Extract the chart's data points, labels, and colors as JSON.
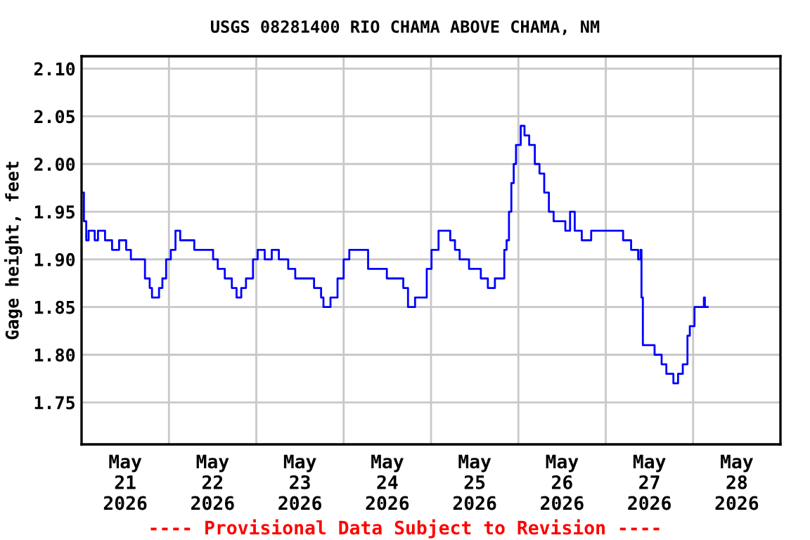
{
  "chart_data": {
    "type": "step",
    "title": "USGS 08281400 RIO CHAMA ABOVE CHAMA, NM",
    "ylabel": "Gage height, feet",
    "annotations": [
      "---- Provisional Data Subject to Revision ----"
    ],
    "x": [
      "2026-05-21T00:15",
      "2026-05-21T00:39",
      "2026-05-21T01:17",
      "2026-05-21T01:56",
      "2026-05-21T03:37",
      "2026-05-21T04:31",
      "2026-05-21T06:27",
      "2026-05-21T08:23",
      "2026-05-21T10:19",
      "2026-05-21T12:15",
      "2026-05-21T13:33",
      "2026-05-21T15:29",
      "2026-05-21T17:25",
      "2026-05-21T18:43",
      "2026-05-21T19:21",
      "2026-05-21T21:17",
      "2026-05-21T22:12",
      "2026-05-21T23:14",
      "2026-05-22T00:31",
      "2026-05-22T01:48",
      "2026-05-22T03:06",
      "2026-05-22T06:19",
      "2026-05-22T06:58",
      "2026-05-22T09:33",
      "2026-05-22T12:08",
      "2026-05-22T13:25",
      "2026-05-22T15:21",
      "2026-05-22T17:17",
      "2026-05-22T18:35",
      "2026-05-22T19:52",
      "2026-05-22T21:10",
      "2026-05-22T23:06",
      "2026-05-23T00:23",
      "2026-05-23T02:19",
      "2026-05-23T04:15",
      "2026-05-23T06:12",
      "2026-05-23T08:46",
      "2026-05-23T10:42",
      "2026-05-23T13:56",
      "2026-05-23T15:52",
      "2026-05-23T17:48",
      "2026-05-23T18:27",
      "2026-05-23T20:23",
      "2026-05-23T22:19",
      "2026-05-24T00:00",
      "2026-05-24T01:33",
      "2026-05-24T05:25",
      "2026-05-24T06:43",
      "2026-05-24T09:17",
      "2026-05-24T11:52",
      "2026-05-24T15:06",
      "2026-05-24T16:23",
      "2026-05-24T17:41",
      "2026-05-24T19:37",
      "2026-05-24T21:33",
      "2026-05-24T22:50",
      "2026-05-25T00:08",
      "2026-05-25T02:04",
      "2026-05-25T03:21",
      "2026-05-25T05:17",
      "2026-05-25T06:35",
      "2026-05-25T07:52",
      "2026-05-25T10:27",
      "2026-05-25T12:23",
      "2026-05-25T13:41",
      "2026-05-25T15:37",
      "2026-05-25T17:33",
      "2026-05-25T18:50",
      "2026-05-25T20:08",
      "2026-05-25T20:46",
      "2026-05-25T21:25",
      "2026-05-25T22:04",
      "2026-05-25T22:43",
      "2026-05-25T23:21",
      "2026-05-26T00:39",
      "2026-05-26T01:41",
      "2026-05-26T02:58",
      "2026-05-26T04:31",
      "2026-05-26T05:48",
      "2026-05-26T07:06",
      "2026-05-26T08:23",
      "2026-05-26T09:41",
      "2026-05-26T10:58",
      "2026-05-26T12:54",
      "2026-05-26T14:12",
      "2026-05-26T15:29",
      "2026-05-26T17:25",
      "2026-05-26T20:00",
      "2026-05-26T21:56",
      "2026-05-27T01:10",
      "2026-05-27T04:23",
      "2026-05-27T04:46",
      "2026-05-27T06:58",
      "2026-05-27T08:54",
      "2026-05-27T09:33",
      "2026-05-27T09:49",
      "2026-05-27T10:12",
      "2026-05-27T10:50",
      "2026-05-27T13:10",
      "2026-05-27T13:25",
      "2026-05-27T15:21",
      "2026-05-27T16:39",
      "2026-05-27T18:35",
      "2026-05-27T19:52",
      "2026-05-27T21:10",
      "2026-05-27T22:27",
      "2026-05-27T23:06",
      "2026-05-28T00:23",
      "2026-05-28T01:41",
      "2026-05-28T02:58",
      "2026-05-28T03:14",
      "2026-05-28T04:00"
    ],
    "series": [
      {
        "color": "#0000ff",
        "values": [
          1.97,
          1.94,
          1.92,
          1.93,
          1.92,
          1.93,
          1.92,
          1.91,
          1.92,
          1.91,
          1.9,
          1.9,
          1.88,
          1.87,
          1.86,
          1.87,
          1.88,
          1.9,
          1.91,
          1.93,
          1.92,
          1.92,
          1.91,
          1.91,
          1.9,
          1.89,
          1.88,
          1.87,
          1.86,
          1.87,
          1.88,
          1.9,
          1.91,
          1.9,
          1.91,
          1.9,
          1.89,
          1.88,
          1.88,
          1.87,
          1.86,
          1.85,
          1.86,
          1.88,
          1.9,
          1.91,
          1.91,
          1.89,
          1.89,
          1.88,
          1.88,
          1.87,
          1.85,
          1.86,
          1.86,
          1.89,
          1.91,
          1.93,
          1.93,
          1.92,
          1.91,
          1.9,
          1.89,
          1.89,
          1.88,
          1.87,
          1.88,
          1.88,
          1.91,
          1.92,
          1.95,
          1.98,
          2.0,
          2.02,
          2.04,
          2.03,
          2.02,
          2.0,
          1.99,
          1.97,
          1.95,
          1.94,
          1.94,
          1.93,
          1.95,
          1.93,
          1.92,
          1.93,
          1.93,
          1.93,
          1.93,
          1.92,
          1.91,
          1.9,
          1.91,
          1.86,
          1.81,
          1.81,
          1.81,
          1.8,
          1.79,
          1.78,
          1.77,
          1.78,
          1.79,
          1.82,
          1.83,
          1.85,
          1.85,
          1.86,
          1.85,
          1.85
        ]
      }
    ],
    "xlim": [
      "2026-05-21",
      "2026-05-29"
    ],
    "xticks": [
      {
        "value": "2026-05-21T12:00",
        "label": "May\n21\n2026"
      },
      {
        "value": "2026-05-22T00:00",
        "label": null
      },
      {
        "value": "2026-05-22T12:00",
        "label": "May\n22\n2026"
      },
      {
        "value": "2026-05-23T00:00",
        "label": null
      },
      {
        "value": "2026-05-23T12:00",
        "label": "May\n23\n2026"
      },
      {
        "value": "2026-05-24T00:00",
        "label": null
      },
      {
        "value": "2026-05-24T12:00",
        "label": "May\n24\n2026"
      },
      {
        "value": "2026-05-25T00:00",
        "label": null
      },
      {
        "value": "2026-05-25T12:00",
        "label": "May\n25\n2026"
      },
      {
        "value": "2026-05-26T00:00",
        "label": null
      },
      {
        "value": "2026-05-26T12:00",
        "label": "May\n26\n2026"
      },
      {
        "value": "2026-05-27T00:00",
        "label": null
      },
      {
        "value": "2026-05-27T12:00",
        "label": "May\n27\n2026"
      },
      {
        "value": "2026-05-28T00:00",
        "label": null
      },
      {
        "value": "2026-05-28T12:00",
        "label": "May\n28\n2026"
      }
    ],
    "ylim": [
      1.706,
      2.113
    ],
    "yticks": [
      {
        "value": 1.75,
        "label": "1.75"
      },
      {
        "value": 1.8,
        "label": "1.80"
      },
      {
        "value": 1.85,
        "label": "1.85"
      },
      {
        "value": 1.9,
        "label": "1.90"
      },
      {
        "value": 1.95,
        "label": "1.95"
      },
      {
        "value": 2.0,
        "label": "2.00"
      },
      {
        "value": 2.05,
        "label": "2.05"
      },
      {
        "value": 2.1,
        "label": "2.10"
      }
    ],
    "grid": true,
    "line_style": "solid"
  }
}
